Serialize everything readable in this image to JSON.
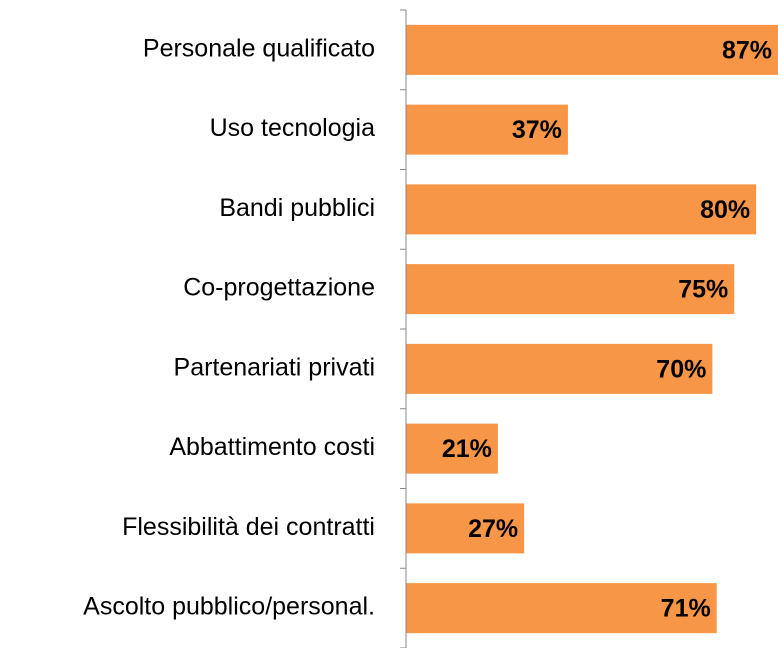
{
  "chart_data": {
    "type": "hbar",
    "categories": [
      "Personale qualificato",
      "Uso tecnologia",
      "Bandi pubblici",
      "Co-progettazione",
      "Partenariati privati",
      "Abbattimento costi",
      "Flessibilità dei contratti",
      "Ascolto pubblico/personal."
    ],
    "values": [
      87,
      37,
      80,
      75,
      70,
      21,
      27,
      71
    ],
    "value_labels": [
      "87%",
      "37%",
      "80%",
      "75%",
      "70%",
      "21%",
      "27%",
      "71%"
    ],
    "color": "#f79646",
    "xlim": [
      0,
      85
    ]
  }
}
